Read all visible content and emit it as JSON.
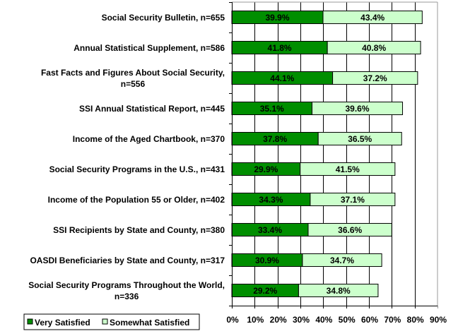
{
  "chart_data": {
    "type": "bar",
    "orientation": "horizontal",
    "stacked": true,
    "title": "",
    "xlabel": "",
    "ylabel": "",
    "xlim": [
      0,
      90
    ],
    "x_ticks": [
      "0%",
      "10%",
      "20%",
      "30%",
      "40%",
      "50%",
      "60%",
      "70%",
      "80%",
      "90%"
    ],
    "grid": true,
    "legend_position": "bottom-left",
    "categories": [
      [
        "Social Security Bulletin, n=655"
      ],
      [
        "Annual Statistical Supplement, n=586"
      ],
      [
        "Fast Facts and Figures About Social Security,",
        "n=556"
      ],
      [
        "SSI Annual Statistical Report, n=445"
      ],
      [
        "Income of the Aged Chartbook, n=370"
      ],
      [
        "Social Security Programs in the U.S., n=431"
      ],
      [
        "Income of the Population 55 or Older, n=402"
      ],
      [
        "SSI Recipients by State and County, n=380"
      ],
      [
        "OASDI Beneficiaries by State and County, n=317"
      ],
      [
        "Social Security Programs Throughout the World,",
        "n=336"
      ]
    ],
    "series": [
      {
        "name": "Very Satisfied",
        "color": "#008E00",
        "values": [
          39.9,
          41.8,
          44.1,
          35.1,
          37.8,
          29.9,
          34.3,
          33.4,
          30.9,
          29.2
        ],
        "labels": [
          "39.9%",
          "41.8%",
          "44.1%",
          "35.1%",
          "37.8%",
          "29.9%",
          "34.3%",
          "33.4%",
          "30.9%",
          "29.2%"
        ]
      },
      {
        "name": "Somewhat Satisfied",
        "color": "#CCFFCC",
        "values": [
          43.4,
          40.8,
          37.2,
          39.6,
          36.5,
          41.5,
          37.1,
          36.6,
          34.7,
          34.8
        ],
        "labels": [
          "43.4%",
          "40.8%",
          "37.2%",
          "39.6%",
          "36.5%",
          "41.5%",
          "37.1%",
          "36.6%",
          "34.7%",
          "34.8%"
        ]
      }
    ]
  }
}
